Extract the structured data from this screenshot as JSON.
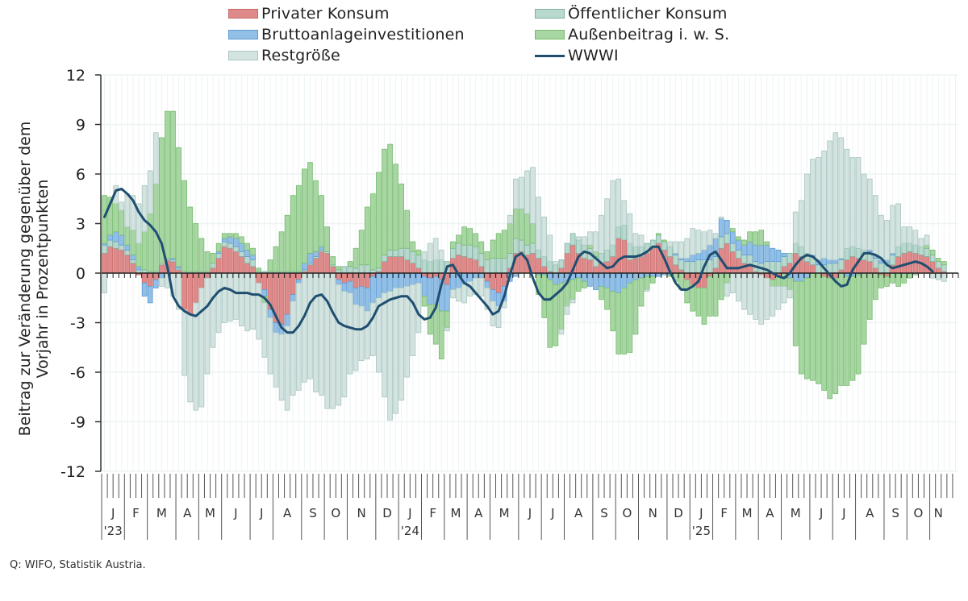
{
  "chart_data": {
    "type": "bar",
    "stacked": true,
    "ylabel": "Beitrag zur Veränderung gegenüber dem Vorjahr in Prozentpunkten",
    "ylabel_lines": [
      "Beitrag zur Veränderung gegenüber dem",
      "Vorjahr in Prozentpunkten"
    ],
    "ylim": [
      -12,
      12
    ],
    "yticks": [
      12,
      9,
      6,
      3,
      0,
      -3,
      -6,
      -9,
      -12
    ],
    "ytick_labels": [
      "12",
      "9",
      "6",
      "3",
      "0",
      "-3",
      "-6",
      "-9",
      "-12"
    ],
    "x_frequency": "weekly",
    "x_total_ticks": 150,
    "months": [
      {
        "label": "J",
        "year": "'23",
        "weeks": 4
      },
      {
        "label": "F",
        "weeks": 4
      },
      {
        "label": "M",
        "weeks": 5
      },
      {
        "label": "A",
        "weeks": 4
      },
      {
        "label": "M",
        "weeks": 4
      },
      {
        "label": "J",
        "weeks": 5
      },
      {
        "label": "J",
        "weeks": 4
      },
      {
        "label": "A",
        "weeks": 5
      },
      {
        "label": "S",
        "weeks": 4
      },
      {
        "label": "O",
        "weeks": 4
      },
      {
        "label": "N",
        "weeks": 5
      },
      {
        "label": "D",
        "weeks": 4
      },
      {
        "label": "J",
        "year": "'24",
        "weeks": 4
      },
      {
        "label": "F",
        "weeks": 4
      },
      {
        "label": "M",
        "weeks": 4
      },
      {
        "label": "A",
        "weeks": 4
      },
      {
        "label": "M",
        "weeks": 5
      },
      {
        "label": "J",
        "weeks": 4
      },
      {
        "label": "J",
        "weeks": 4
      },
      {
        "label": "A",
        "weeks": 5
      },
      {
        "label": "S",
        "weeks": 4
      },
      {
        "label": "O",
        "weeks": 4
      },
      {
        "label": "N",
        "weeks": 5
      },
      {
        "label": "D",
        "weeks": 4
      },
      {
        "label": "J",
        "year": "'25",
        "weeks": 4
      },
      {
        "label": "F",
        "weeks": 4
      },
      {
        "label": "M",
        "weeks": 4
      },
      {
        "label": "A",
        "weeks": 4
      },
      {
        "label": "M",
        "weeks": 5
      },
      {
        "label": "J",
        "weeks": 4
      },
      {
        "label": "J",
        "weeks": 4
      },
      {
        "label": "A",
        "weeks": 5
      },
      {
        "label": "S",
        "weeks": 4
      },
      {
        "label": "O",
        "weeks": 4
      },
      {
        "label": "N",
        "weeks": 3
      }
    ],
    "series": [
      {
        "name": "Privater Konsum",
        "color": "#de8a8a",
        "edge": "#c96a6a",
        "values": [
          1.2,
          1.6,
          1.5,
          1.4,
          1.1,
          0.6,
          -0.1,
          -0.6,
          -0.8,
          -0.4,
          0.5,
          0.8,
          0.7,
          0.2,
          -2.2,
          -2.5,
          -1.8,
          -0.9,
          -0.3,
          0.3,
          0.9,
          1.6,
          1.5,
          1.3,
          1.0,
          0.6,
          0.4,
          -0.6,
          -1.0,
          -2.2,
          -3.0,
          -3.1,
          -2.5,
          -1.3,
          -0.4,
          0.1,
          0.5,
          0.9,
          1.3,
          1.2,
          0.4,
          -0.4,
          -0.6,
          -0.5,
          -0.9,
          -0.8,
          -0.9,
          -0.2,
          0.1,
          0.7,
          1.0,
          1.0,
          1.0,
          0.8,
          0.6,
          0.3,
          -0.2,
          -0.3,
          -0.2,
          -0.4,
          -0.7,
          0.9,
          1.1,
          1.0,
          0.9,
          0.8,
          0.4,
          -0.5,
          -1.0,
          -1.2,
          -0.8,
          0.3,
          1.2,
          1.3,
          1.1,
          1.2,
          0.9,
          0.4,
          0.1,
          0.0,
          0.3,
          1.2,
          1.7,
          1.2,
          0.9,
          0.8,
          0.4,
          0.6,
          0.7,
          1.0,
          2.1,
          2.0,
          0.8,
          0.9,
          1.0,
          1.2,
          1.5,
          1.8,
          1.4,
          1.0,
          0.5,
          0.2,
          -0.4,
          -0.7,
          -0.9,
          -0.9,
          -0.2,
          0.3,
          1.5,
          1.8,
          1.3,
          0.9,
          0.6,
          0.5,
          0.1,
          -0.1,
          -0.3,
          -0.4,
          -0.2,
          0.4,
          0.6,
          1.2,
          1.0,
          0.7,
          0.5,
          0.0,
          -0.2,
          -0.3,
          -0.3,
          0.2,
          0.8,
          1.0,
          0.9,
          0.8,
          0.7,
          0.3,
          -0.1,
          -0.2,
          0.5,
          1.0,
          1.2,
          1.3,
          1.2,
          1.1,
          1.0,
          0.7,
          0.3,
          0.1
        ]
      },
      {
        "name": "Öffentlicher Konsum",
        "color": "#b9d9cf",
        "edge": "#7fb1a2",
        "values": [
          0.5,
          0.4,
          0.4,
          0.3,
          0.3,
          0.2,
          0.2,
          0.2,
          0.1,
          0.1,
          0.1,
          0.1,
          0.1,
          0.1,
          0.1,
          0.1,
          0.1,
          0.1,
          0.1,
          0.3,
          0.3,
          0.3,
          0.3,
          0.3,
          0.3,
          0.4,
          0.4,
          0.1,
          0.1,
          0.1,
          0.1,
          0.1,
          0.1,
          0.1,
          0.1,
          0.1,
          0.1,
          0.1,
          0.1,
          0.1,
          0.1,
          0.2,
          0.4,
          0.4,
          0.3,
          0.5,
          0.5,
          0.2,
          0.2,
          0.4,
          0.4,
          0.4,
          0.5,
          0.7,
          0.7,
          0.8,
          0.8,
          0.7,
          0.8,
          0.8,
          0.7,
          0.6,
          0.7,
          0.7,
          0.8,
          0.8,
          0.8,
          0.8,
          0.9,
          0.9,
          0.9,
          0.9,
          0.9,
          0.7,
          0.6,
          0.6,
          0.5,
          0.6,
          0.6,
          0.5,
          0.5,
          0.6,
          0.7,
          0.8,
          0.8,
          0.7,
          0.6,
          0.6,
          0.7,
          0.7,
          0.7,
          0.9,
          1.0,
          0.7,
          0.6,
          0.6,
          0.5,
          0.5,
          0.5,
          0.6,
          0.6,
          0.6,
          0.7,
          0.7,
          0.8,
          0.8,
          0.8,
          0.7,
          0.7,
          0.6,
          0.5,
          0.5,
          0.5,
          0.6,
          0.6,
          0.6,
          0.7,
          0.7,
          0.7,
          0.6,
          0.6,
          0.6,
          0.6,
          0.5,
          0.5,
          0.5,
          0.5,
          0.6,
          0.6,
          0.6,
          0.7,
          0.6,
          0.6,
          0.6,
          0.6,
          0.6,
          0.6,
          0.6,
          0.6,
          0.6,
          0.6,
          0.5,
          0.5,
          0.5,
          0.5,
          0.4,
          0.4,
          0.4,
          0.4,
          0.3
        ]
      },
      {
        "name": "Bruttoanlageinvestitionen",
        "color": "#92bfe6",
        "edge": "#5d9bd4",
        "values": [
          0.1,
          0.3,
          0.6,
          0.6,
          0.3,
          0.3,
          0.2,
          -0.8,
          -1.0,
          -0.5,
          -0.3,
          0.0,
          0.1,
          0.1,
          0.0,
          0.0,
          0.0,
          0.0,
          0.0,
          0.0,
          0.1,
          0.2,
          0.4,
          0.5,
          0.5,
          0.4,
          0.3,
          0.0,
          -0.4,
          -0.5,
          -0.6,
          -0.6,
          -0.7,
          -0.4,
          -0.2,
          0.4,
          0.6,
          0.3,
          0.2,
          0.0,
          0.0,
          -0.3,
          -0.5,
          -0.7,
          -1.0,
          -1.2,
          -1.4,
          -1.6,
          -1.5,
          -1.2,
          -1.1,
          -0.9,
          -0.9,
          -0.8,
          -0.7,
          -0.6,
          -1.2,
          -1.6,
          -1.7,
          -1.9,
          -1.6,
          -1.0,
          -0.9,
          -0.7,
          -0.5,
          -0.3,
          -0.3,
          -0.4,
          -0.7,
          -0.8,
          -0.9,
          -0.5,
          -0.2,
          0.0,
          0.0,
          0.0,
          -0.1,
          -0.1,
          -0.4,
          -0.7,
          -0.6,
          -0.5,
          -0.4,
          -0.3,
          -0.5,
          -0.8,
          -1.0,
          -0.8,
          -0.9,
          -1.1,
          -1.2,
          -0.9,
          -0.6,
          -0.4,
          -0.3,
          -0.2,
          -0.2,
          -0.2,
          -0.1,
          -0.1,
          0.1,
          0.1,
          0.2,
          0.4,
          0.4,
          0.6,
          0.9,
          1.1,
          1.1,
          0.8,
          0.7,
          0.6,
          0.6,
          0.8,
          1.0,
          1.1,
          1.0,
          0.8,
          0.7,
          0.2,
          -0.3,
          -0.5,
          -0.5,
          -0.3,
          0.1,
          0.3,
          0.4,
          0.2,
          0.2,
          0.1,
          -0.2,
          -0.2,
          -0.1,
          0.0,
          0.1,
          0.2,
          0.2,
          0.2,
          0.1,
          0.0,
          0.0,
          0.0,
          0.0,
          0.0,
          0.0,
          0.0,
          0.0,
          0.0
        ]
      },
      {
        "name": "Außenbeitrag i. w. S.",
        "color": "#a7d6a2",
        "edge": "#76bb6f",
        "values": [
          2.9,
          2.3,
          1.7,
          1.5,
          1.1,
          1.5,
          1.4,
          2.3,
          3.5,
          5.3,
          7.6,
          8.9,
          8.9,
          7.2,
          5.5,
          3.9,
          2.9,
          2.0,
          1.2,
          0.6,
          0.5,
          0.3,
          0.2,
          0.3,
          0.4,
          0.4,
          0.4,
          0.2,
          -0.4,
          0.7,
          1.5,
          2.4,
          3.4,
          4.6,
          5.2,
          5.7,
          5.5,
          4.3,
          3.1,
          1.5,
          0.5,
          0.2,
          0.0,
          0.3,
          1.2,
          2.1,
          3.5,
          4.6,
          5.8,
          6.4,
          6.4,
          5.2,
          3.9,
          2.3,
          0.6,
          0.3,
          -0.6,
          -1.8,
          -2.4,
          -2.9,
          -1.0,
          0.4,
          0.5,
          1.1,
          1.0,
          0.8,
          0.7,
          0.5,
          1.1,
          1.5,
          1.7,
          1.8,
          1.8,
          1.9,
          1.9,
          1.2,
          -1.2,
          -2.6,
          -4.1,
          -3.7,
          -2.8,
          -1.5,
          -1.2,
          -0.8,
          -0.4,
          0.2,
          0.3,
          -0.8,
          -1.3,
          -2.4,
          -3.7,
          -4.0,
          -4.2,
          -3.3,
          -1.7,
          -0.8,
          -0.4,
          0.1,
          0.1,
          -0.1,
          -0.5,
          -1.0,
          -1.4,
          -1.6,
          -1.7,
          -2.2,
          -2.4,
          -2.6,
          -1.6,
          -0.6,
          0.2,
          0.2,
          0.3,
          0.6,
          0.8,
          0.9,
          0.2,
          -0.4,
          -0.6,
          -0.8,
          -0.7,
          -3.9,
          -5.6,
          -6.1,
          -6.5,
          -6.7,
          -6.9,
          -7.3,
          -7.0,
          -6.8,
          -6.6,
          -6.3,
          -6.0,
          -4.3,
          -2.8,
          -1.6,
          -0.8,
          -0.6,
          -0.6,
          -0.8,
          -0.6,
          -0.3,
          -0.1,
          0.0,
          0.2,
          0.3,
          0.2,
          0.2,
          0.1
        ]
      },
      {
        "name": "Restgröße",
        "color": "#d3e3e0",
        "edge": "#a9c6c1",
        "values": [
          -1.2,
          0.0,
          1.1,
          0.5,
          2.0,
          2.1,
          2.4,
          2.8,
          2.6,
          3.1,
          -0.5,
          -0.9,
          -1.4,
          -2.2,
          -4.0,
          -5.3,
          -6.5,
          -7.2,
          -5.8,
          -4.5,
          -3.6,
          -3.0,
          -2.9,
          -2.8,
          -3.2,
          -3.5,
          -3.4,
          -3.4,
          -3.3,
          -3.4,
          -3.3,
          -4.0,
          -5.1,
          -5.7,
          -6.5,
          -6.6,
          -6.4,
          -7.2,
          -7.4,
          -8.2,
          -8.2,
          -7.3,
          -6.4,
          -4.9,
          -4.0,
          -3.3,
          -2.9,
          -3.2,
          -4.5,
          -6.3,
          -7.8,
          -7.6,
          -6.8,
          -5.5,
          -4.3,
          -3.0,
          0.5,
          1.1,
          1.3,
          0.6,
          -0.2,
          -0.5,
          -0.8,
          -1.1,
          -0.9,
          -1.0,
          -1.1,
          -1.3,
          -1.5,
          -1.3,
          -0.4,
          0.5,
          1.8,
          1.9,
          2.6,
          3.4,
          3.2,
          2.4,
          1.6,
          0.2,
          -0.3,
          -0.5,
          -0.2,
          0.2,
          0.5,
          0.8,
          1.2,
          2.3,
          3.1,
          3.9,
          2.9,
          1.5,
          1.8,
          0.8,
          0.7,
          -0.1,
          0.0,
          0.0,
          0.0,
          0.3,
          0.7,
          1.0,
          1.2,
          1.6,
          1.4,
          1.1,
          0.9,
          0.3,
          0.1,
          -0.8,
          -1.2,
          -1.7,
          -2.2,
          -2.5,
          -2.8,
          -3.0,
          -2.5,
          -1.8,
          -1.4,
          -1.0,
          -0.5,
          1.9,
          2.8,
          4.8,
          5.8,
          6.2,
          6.5,
          7.2,
          7.7,
          7.3,
          6.0,
          5.4,
          5.5,
          4.6,
          4.3,
          3.6,
          2.7,
          2.4,
          2.9,
          2.6,
          1.0,
          1.0,
          0.9,
          0.5,
          0.6,
          -0.3,
          -0.4,
          -0.5,
          -0.6
        ]
      },
      {
        "name": "WWWI",
        "color": "#1f4e70",
        "type": "line",
        "values": [
          3.4,
          4.2,
          5.0,
          5.1,
          4.8,
          4.4,
          3.7,
          3.2,
          2.9,
          2.5,
          1.8,
          0.4,
          -1.4,
          -2.0,
          -2.3,
          -2.5,
          -2.6,
          -2.3,
          -2.0,
          -1.5,
          -1.1,
          -0.9,
          -1.0,
          -1.2,
          -1.2,
          -1.2,
          -1.3,
          -1.3,
          -1.5,
          -1.9,
          -2.6,
          -3.3,
          -3.6,
          -3.6,
          -3.2,
          -2.6,
          -1.8,
          -1.4,
          -1.3,
          -1.7,
          -2.4,
          -3.0,
          -3.2,
          -3.3,
          -3.4,
          -3.4,
          -3.2,
          -2.7,
          -2.0,
          -1.8,
          -1.6,
          -1.5,
          -1.4,
          -1.4,
          -1.8,
          -2.5,
          -2.8,
          -2.7,
          -2.1,
          -0.7,
          0.4,
          0.5,
          -0.1,
          -0.6,
          -0.8,
          -1.2,
          -1.6,
          -2.0,
          -2.5,
          -2.3,
          -1.4,
          -0.1,
          1.0,
          1.2,
          0.8,
          -0.3,
          -1.2,
          -1.6,
          -1.6,
          -1.3,
          -1.0,
          -0.6,
          0.2,
          1.0,
          1.3,
          1.2,
          0.9,
          0.6,
          0.3,
          0.4,
          0.8,
          1.0,
          1.0,
          1.0,
          1.1,
          1.3,
          1.6,
          1.6,
          0.9,
          0.1,
          -0.6,
          -1.0,
          -1.0,
          -0.8,
          -0.5,
          0.4,
          1.1,
          1.3,
          0.8,
          0.3,
          0.3,
          0.3,
          0.4,
          0.5,
          0.4,
          0.3,
          0.2,
          0.0,
          -0.2,
          -0.3,
          0.0,
          0.5,
          0.9,
          1.1,
          1.0,
          0.7,
          0.3,
          -0.1,
          -0.5,
          -0.8,
          -0.7,
          0.2,
          0.7,
          1.2,
          1.2,
          1.1,
          0.9,
          0.5,
          0.3,
          0.4,
          0.5,
          0.6,
          0.7,
          0.6,
          0.4,
          0.1
        ]
      }
    ]
  },
  "legend": [
    {
      "label": "Privater Konsum",
      "color": "#de8a8a",
      "edge": "#c96a6a",
      "kind": "box"
    },
    {
      "label": "Öffentlicher Konsum",
      "color": "#b9d9cf",
      "edge": "#7fb1a2",
      "kind": "box"
    },
    {
      "label": "Bruttoanlageinvestitionen",
      "color": "#92bfe6",
      "edge": "#5d9bd4",
      "kind": "box"
    },
    {
      "label": "Außenbeitrag i. w. S.",
      "color": "#a7d6a2",
      "edge": "#76bb6f",
      "kind": "box"
    },
    {
      "label": "Restgröße",
      "color": "#d3e3e0",
      "edge": "#a9c6c1",
      "kind": "box"
    },
    {
      "label": "WWWI",
      "color": "#1f4e70",
      "kind": "line"
    }
  ],
  "source": "Q: WIFO, Statistik Austria."
}
